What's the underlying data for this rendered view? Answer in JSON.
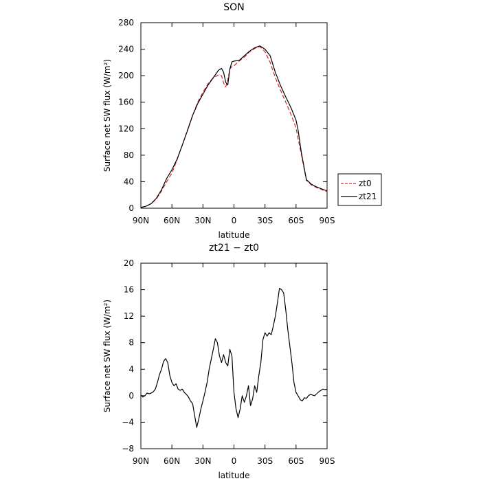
{
  "chart_data": [
    {
      "type": "line",
      "title": "SON",
      "xlabel": "latitude",
      "ylabel": "Surface net SW flux (W/m²)",
      "xlim": [
        90,
        -90
      ],
      "ylim": [
        0,
        280
      ],
      "xticks": [
        90,
        60,
        30,
        0,
        -30,
        -60,
        -90
      ],
      "xtick_labels": [
        "90N",
        "60N",
        "30N",
        "0",
        "30S",
        "60S",
        "90S"
      ],
      "yticks": [
        0,
        40,
        80,
        120,
        160,
        200,
        240,
        280
      ],
      "ytick_labels": [
        "0",
        "40",
        "80",
        "120",
        "160",
        "200",
        "240",
        "280"
      ],
      "legend": "right",
      "series": [
        {
          "name": "zt0",
          "color": "#d62728",
          "dash": "dashed",
          "x": [
            90,
            85,
            80,
            75,
            70,
            65,
            60,
            55,
            50,
            45,
            40,
            35,
            30,
            25,
            20,
            15,
            12,
            10,
            8,
            6,
            4,
            2,
            0,
            -5,
            -10,
            -15,
            -20,
            -25,
            -30,
            -35,
            -40,
            -45,
            -50,
            -55,
            -60,
            -62,
            -65,
            -70,
            -75,
            -80,
            -85,
            -90
          ],
          "y": [
            1,
            3,
            7,
            14,
            26,
            40,
            53,
            73,
            95,
            118,
            140,
            160,
            175,
            188,
            197,
            201,
            200,
            189,
            183,
            194,
            210,
            214,
            215,
            222,
            228,
            236,
            241,
            244,
            236,
            220,
            197,
            178,
            160,
            142,
            121,
            105,
            82,
            42,
            35,
            31,
            28,
            25
          ]
        },
        {
          "name": "zt21",
          "color": "#000000",
          "dash": "solid",
          "x": [
            90,
            85,
            80,
            75,
            70,
            65,
            60,
            55,
            50,
            45,
            40,
            35,
            30,
            25,
            20,
            15,
            12,
            10,
            8,
            6,
            4,
            2,
            0,
            -5,
            -10,
            -15,
            -20,
            -25,
            -30,
            -35,
            -40,
            -45,
            -50,
            -55,
            -60,
            -62,
            -65,
            -70,
            -75,
            -80,
            -85,
            -90
          ],
          "y": [
            1,
            3,
            7,
            15,
            28,
            45,
            58,
            74,
            95,
            117,
            140,
            158,
            172,
            186,
            197,
            208,
            211,
            205,
            190,
            186,
            210,
            221,
            222,
            223,
            230,
            237,
            242,
            245,
            240,
            230,
            205,
            185,
            168,
            152,
            133,
            118,
            85,
            43,
            36,
            32,
            29,
            26
          ]
        }
      ]
    },
    {
      "type": "line",
      "title": "zt21 − zt0",
      "xlabel": "latitude",
      "ylabel": "Surface net SW flux (W/m²)",
      "xlim": [
        90,
        -90
      ],
      "ylim": [
        -8,
        20
      ],
      "xticks": [
        90,
        60,
        30,
        0,
        -30,
        -60,
        -90
      ],
      "xtick_labels": [
        "90N",
        "60N",
        "30N",
        "0",
        "30S",
        "60S",
        "90S"
      ],
      "yticks": [
        -8,
        -4,
        0,
        4,
        8,
        12,
        16,
        20
      ],
      "ytick_labels": [
        "−8",
        "−4",
        "0",
        "4",
        "8",
        "12",
        "16",
        "20"
      ],
      "series": [
        {
          "color": "#000000",
          "dash": "solid",
          "x": [
            90,
            88,
            86,
            84,
            82,
            80,
            78,
            76,
            74,
            72,
            70,
            68,
            66,
            64,
            62,
            60,
            58,
            56,
            54,
            52,
            50,
            48,
            46,
            44,
            42,
            40,
            38,
            36,
            34,
            32,
            30,
            28,
            26,
            24,
            22,
            20,
            18,
            16,
            14,
            12,
            10,
            8,
            6,
            4,
            2,
            0,
            -2,
            -4,
            -6,
            -8,
            -10,
            -12,
            -14,
            -16,
            -18,
            -20,
            -22,
            -24,
            -26,
            -28,
            -30,
            -32,
            -34,
            -36,
            -38,
            -40,
            -42,
            -44,
            -46,
            -48,
            -50,
            -52,
            -54,
            -56,
            -58,
            -60,
            -62,
            -64,
            -66,
            -68,
            -70,
            -72,
            -74,
            -76,
            -78,
            -80,
            -82,
            -84,
            -86,
            -88,
            -90
          ],
          "y": [
            0.1,
            -0.2,
            0.0,
            0.4,
            0.3,
            0.4,
            0.6,
            1.0,
            2.0,
            3.2,
            4.0,
            5.2,
            5.6,
            5.0,
            3.0,
            2.0,
            1.5,
            1.8,
            1.0,
            0.8,
            1.0,
            0.5,
            0.2,
            -0.2,
            -0.8,
            -1.2,
            -3.0,
            -4.8,
            -3.5,
            -2.0,
            -0.8,
            0.5,
            2.0,
            4.0,
            5.5,
            7.0,
            8.6,
            8.0,
            6.0,
            5.0,
            6.2,
            5.0,
            4.5,
            7.0,
            6.0,
            0.5,
            -2.0,
            -3.3,
            -2.0,
            0.0,
            -1.0,
            0.0,
            1.5,
            -1.5,
            -0.5,
            1.5,
            0.5,
            3.0,
            5.0,
            8.5,
            9.5,
            9.0,
            9.5,
            9.2,
            10.5,
            12.0,
            14.0,
            16.2,
            16.0,
            15.5,
            13.0,
            10.0,
            7.5,
            5.0,
            2.0,
            0.5,
            0.0,
            -0.6,
            -0.8,
            -0.3,
            -0.4,
            0.0,
            0.2,
            0.1,
            0.0,
            0.3,
            0.6,
            0.8,
            1.0,
            0.9,
            1.0
          ]
        }
      ]
    }
  ]
}
